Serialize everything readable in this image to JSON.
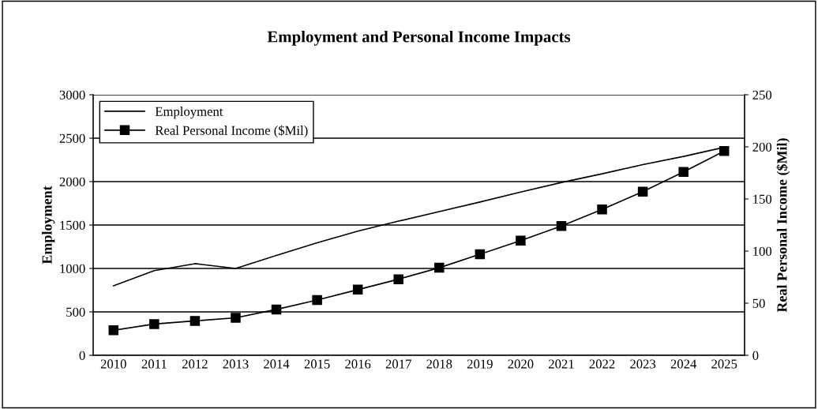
{
  "chart_data": {
    "type": "line",
    "title": "Employment and Personal Income Impacts",
    "ylabel": "Employment",
    "y2label": "Real Personal Income ($Mil)",
    "categories": [
      "2010",
      "2011",
      "2012",
      "2013",
      "2014",
      "2015",
      "2016",
      "2017",
      "2018",
      "2019",
      "2020",
      "2021",
      "2022",
      "2023",
      "2024",
      "2025"
    ],
    "series": [
      {
        "name": "Employment",
        "color": "#000000",
        "marker": "none",
        "values": [
          800,
          975,
          1055,
          1000,
          1150,
          1295,
          1430,
          1545,
          1655,
          1765,
          1880,
          1990,
          2090,
          2195,
          2290,
          2395
        ]
      },
      {
        "name": "Real Personal Income ($Mil)",
        "color": "#000000",
        "marker": "square",
        "axis": "y2",
        "values": [
          24,
          30,
          33,
          36,
          44,
          53,
          63,
          73,
          84,
          97,
          110,
          124,
          140,
          157,
          176,
          196
        ]
      }
    ],
    "ylim": [
      0,
      3000
    ],
    "yticks": [
      0,
      500,
      1000,
      1500,
      2000,
      2500,
      3000
    ],
    "y2lim": [
      0,
      250
    ],
    "y2ticks": [
      0,
      50,
      100,
      150,
      200,
      250
    ],
    "grid": "y",
    "legend": "top left",
    "line_style": "solid"
  }
}
